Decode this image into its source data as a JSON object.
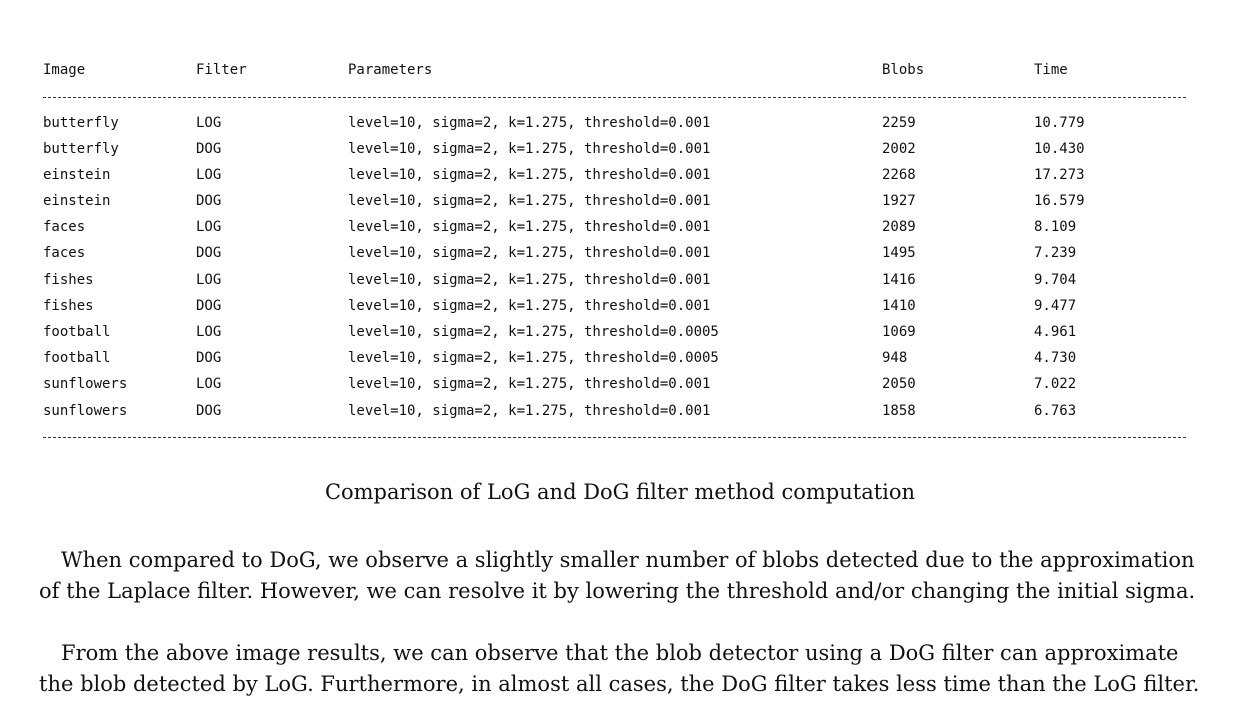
{
  "table": {
    "headers": {
      "image": "Image",
      "filter": "Filter",
      "parameters": "Parameters",
      "blobs": "Blobs",
      "time": "Time"
    },
    "rows": [
      {
        "image": "butterfly",
        "filter": "LOG",
        "parameters": "level=10, sigma=2, k=1.275, threshold=0.001",
        "blobs": "2259",
        "time": "10.779"
      },
      {
        "image": "butterfly",
        "filter": "DOG",
        "parameters": "level=10, sigma=2, k=1.275, threshold=0.001",
        "blobs": "2002",
        "time": "10.430"
      },
      {
        "image": "einstein",
        "filter": "LOG",
        "parameters": "level=10, sigma=2, k=1.275, threshold=0.001",
        "blobs": "2268",
        "time": "17.273"
      },
      {
        "image": "einstein",
        "filter": "DOG",
        "parameters": "level=10, sigma=2, k=1.275, threshold=0.001",
        "blobs": "1927",
        "time": "16.579"
      },
      {
        "image": "faces",
        "filter": "LOG",
        "parameters": "level=10, sigma=2, k=1.275, threshold=0.001",
        "blobs": "2089",
        "time": "8.109"
      },
      {
        "image": "faces",
        "filter": "DOG",
        "parameters": "level=10, sigma=2, k=1.275, threshold=0.001",
        "blobs": "1495",
        "time": "7.239"
      },
      {
        "image": "fishes",
        "filter": "LOG",
        "parameters": "level=10, sigma=2, k=1.275, threshold=0.001",
        "blobs": "1416",
        "time": "9.704"
      },
      {
        "image": "fishes",
        "filter": "DOG",
        "parameters": "level=10, sigma=2, k=1.275, threshold=0.001",
        "blobs": "1410",
        "time": "9.477"
      },
      {
        "image": "football",
        "filter": "LOG",
        "parameters": "level=10, sigma=2, k=1.275, threshold=0.0005",
        "blobs": "1069",
        "time": "4.961"
      },
      {
        "image": "football",
        "filter": "DOG",
        "parameters": "level=10, sigma=2, k=1.275, threshold=0.0005",
        "blobs": "948",
        "time": "4.730"
      },
      {
        "image": "sunflowers",
        "filter": "LOG",
        "parameters": "level=10, sigma=2, k=1.275, threshold=0.001",
        "blobs": "2050",
        "time": "7.022"
      },
      {
        "image": "sunflowers",
        "filter": "DOG",
        "parameters": "level=10, sigma=2, k=1.275, threshold=0.001",
        "blobs": "1858",
        "time": "6.763"
      }
    ]
  },
  "caption": "Comparison of LoG and DoG filter method computation",
  "paragraphs": [
    "When compared to DoG, we observe a slightly smaller number of blobs detected due to the approximation of the Laplace filter. However, we can resolve it by lowering the threshold and/or changing the initial sigma.",
    "From the above image results, we can observe that the blob detector using a DoG filter can approximate the blob detected by LoG. Furthermore, in almost all cases, the DoG filter takes less time than the LoG filter."
  ]
}
